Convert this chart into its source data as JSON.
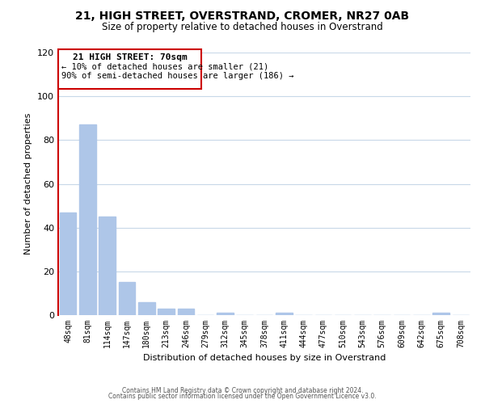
{
  "title": "21, HIGH STREET, OVERSTRAND, CROMER, NR27 0AB",
  "subtitle": "Size of property relative to detached houses in Overstrand",
  "xlabel": "Distribution of detached houses by size in Overstrand",
  "ylabel": "Number of detached properties",
  "bin_labels": [
    "48sqm",
    "81sqm",
    "114sqm",
    "147sqm",
    "180sqm",
    "213sqm",
    "246sqm",
    "279sqm",
    "312sqm",
    "345sqm",
    "378sqm",
    "411sqm",
    "444sqm",
    "477sqm",
    "510sqm",
    "543sqm",
    "576sqm",
    "609sqm",
    "642sqm",
    "675sqm",
    "708sqm"
  ],
  "bar_values": [
    47,
    87,
    45,
    15,
    6,
    3,
    3,
    0,
    1,
    0,
    0,
    1,
    0,
    0,
    0,
    0,
    0,
    0,
    0,
    1,
    0
  ],
  "bar_color": "#aec6e8",
  "ylim": [
    0,
    120
  ],
  "yticks": [
    0,
    20,
    40,
    60,
    80,
    100,
    120
  ],
  "annotation_title": "21 HIGH STREET: 70sqm",
  "annotation_line1": "← 10% of detached houses are smaller (21)",
  "annotation_line2": "90% of semi-detached houses are larger (186) →",
  "footer_line1": "Contains HM Land Registry data © Crown copyright and database right 2024.",
  "footer_line2": "Contains public sector information licensed under the Open Government Licence v3.0.",
  "bg_color": "#ffffff",
  "grid_color": "#c8d8e8",
  "annotation_box_edgecolor": "#cc0000",
  "redline_color": "#cc0000",
  "title_fontsize": 10,
  "subtitle_fontsize": 8.5,
  "ylabel_fontsize": 8,
  "xlabel_fontsize": 8,
  "tick_fontsize": 7,
  "ytick_fontsize": 8,
  "ann_fontsize_title": 8,
  "ann_fontsize_lines": 7.5,
  "footer_fontsize": 5.5
}
